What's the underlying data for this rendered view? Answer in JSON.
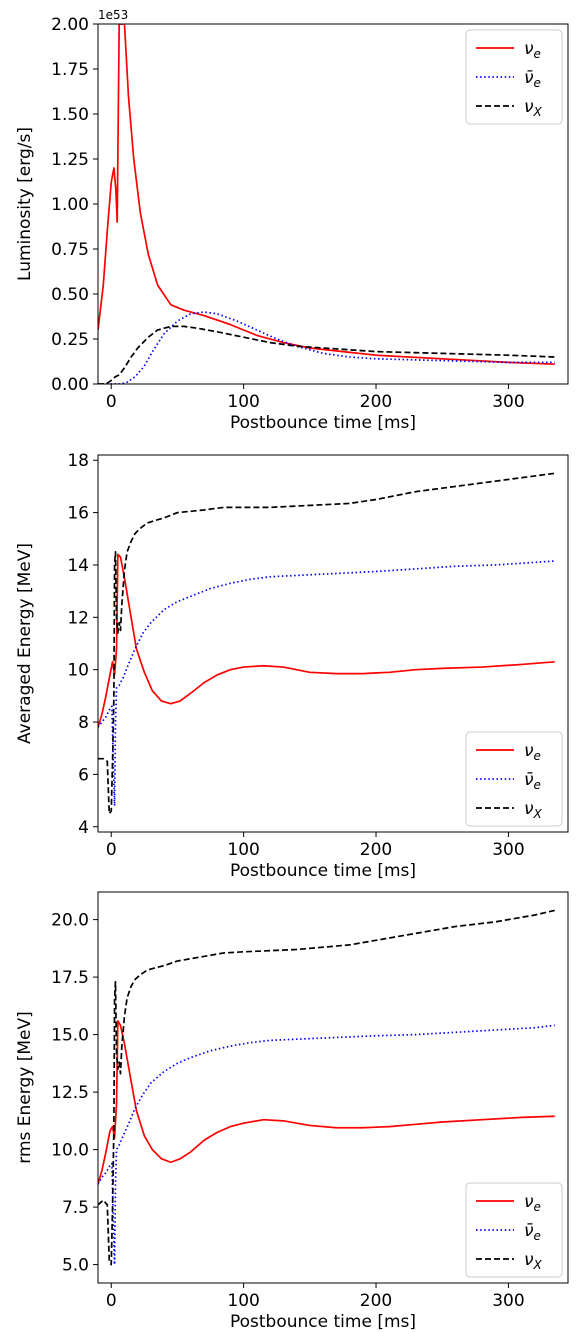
{
  "chart_data": [
    {
      "type": "line",
      "xlabel": "Postbounce time [ms]",
      "ylabel": "Luminosity [erg/s]",
      "offset_text": "1e53",
      "xlim": [
        -10,
        345
      ],
      "ylim": [
        0.0,
        2.0
      ],
      "xticks": [
        0,
        100,
        200,
        300
      ],
      "xtick_labels": [
        "0",
        "100",
        "200",
        "300"
      ],
      "yticks": [
        0.0,
        0.25,
        0.5,
        0.75,
        1.0,
        1.25,
        1.5,
        1.75,
        2.0
      ],
      "ytick_labels": [
        "0.00",
        "0.25",
        "0.50",
        "0.75",
        "1.00",
        "1.25",
        "1.50",
        "1.75",
        "2.00"
      ],
      "legend": "top-right",
      "grid": false,
      "series": [
        {
          "name": "ν_e",
          "color": "#ff0000",
          "style": "solid",
          "x": [
            -10,
            -6,
            -3,
            0,
            2,
            3.5,
            4.5,
            6,
            8,
            10,
            13,
            17,
            22,
            28,
            35,
            45,
            55,
            70,
            90,
            110,
            130,
            150,
            175,
            200,
            250,
            300,
            335
          ],
          "y": [
            0.3,
            0.55,
            0.85,
            1.12,
            1.2,
            1.08,
            0.9,
            2.0,
            2.0,
            2.0,
            1.6,
            1.25,
            0.95,
            0.72,
            0.55,
            0.44,
            0.41,
            0.38,
            0.33,
            0.27,
            0.23,
            0.2,
            0.18,
            0.16,
            0.14,
            0.12,
            0.11
          ]
        },
        {
          "name": "ν̄_e",
          "color": "#0000ff",
          "style": "dotted",
          "x": [
            -10,
            -4,
            0,
            3,
            7,
            12,
            18,
            25,
            32,
            40,
            50,
            60,
            70,
            80,
            95,
            110,
            125,
            140,
            160,
            180,
            200,
            250,
            300,
            335
          ],
          "y": [
            0.0,
            0.0,
            0.0,
            0.0,
            0.0,
            0.01,
            0.04,
            0.1,
            0.19,
            0.28,
            0.35,
            0.39,
            0.4,
            0.39,
            0.35,
            0.3,
            0.25,
            0.21,
            0.17,
            0.15,
            0.14,
            0.13,
            0.12,
            0.12
          ]
        },
        {
          "name": "ν_X",
          "color": "#000000",
          "style": "dashed",
          "x": [
            -10,
            -4,
            0,
            3,
            6,
            10,
            15,
            20,
            28,
            35,
            45,
            55,
            65,
            80,
            100,
            120,
            140,
            160,
            180,
            200,
            250,
            300,
            335
          ],
          "y": [
            0.0,
            0.0,
            0.02,
            0.04,
            0.05,
            0.09,
            0.15,
            0.2,
            0.26,
            0.3,
            0.32,
            0.32,
            0.31,
            0.29,
            0.26,
            0.23,
            0.21,
            0.2,
            0.19,
            0.18,
            0.17,
            0.16,
            0.15
          ]
        }
      ]
    },
    {
      "type": "line",
      "xlabel": "Postbounce time [ms]",
      "ylabel": "Averaged Energy [MeV]",
      "xlim": [
        -10,
        345
      ],
      "ylim": [
        3.8,
        18.2
      ],
      "xticks": [
        0,
        100,
        200,
        300
      ],
      "xtick_labels": [
        "0",
        "100",
        "200",
        "300"
      ],
      "yticks": [
        4,
        6,
        8,
        10,
        12,
        14,
        16,
        18
      ],
      "ytick_labels": [
        "4",
        "6",
        "8",
        "10",
        "12",
        "14",
        "16",
        "18"
      ],
      "legend": "lower-right",
      "grid": false,
      "series": [
        {
          "name": "ν_e",
          "color": "#ff0000",
          "style": "solid",
          "x": [
            -10,
            -7,
            -4,
            -1,
            1,
            2.5,
            4,
            5,
            7,
            10,
            14,
            19,
            25,
            31,
            38,
            45,
            52,
            60,
            70,
            80,
            90,
            100,
            115,
            130,
            150,
            170,
            190,
            210,
            230,
            250,
            280,
            310,
            335
          ],
          "y": [
            7.8,
            8.3,
            9.0,
            9.8,
            10.3,
            9.8,
            10.8,
            14.4,
            14.3,
            13.5,
            12.3,
            10.8,
            9.9,
            9.2,
            8.8,
            8.7,
            8.8,
            9.1,
            9.5,
            9.8,
            10.0,
            10.1,
            10.15,
            10.1,
            9.9,
            9.85,
            9.85,
            9.9,
            10.0,
            10.05,
            10.1,
            10.2,
            10.3
          ]
        },
        {
          "name": "ν̄_e",
          "color": "#0000ff",
          "style": "dotted",
          "x": [
            -10,
            -7,
            -4,
            -1,
            0.5,
            1.5,
            2.5,
            3.2,
            4,
            6,
            9,
            13,
            18,
            24,
            30,
            40,
            50,
            60,
            75,
            90,
            105,
            120,
            140,
            160,
            180,
            200,
            230,
            260,
            290,
            320,
            335
          ],
          "y": [
            7.8,
            8.0,
            8.2,
            8.5,
            8.6,
            6.5,
            4.8,
            8.0,
            9.3,
            9.4,
            9.7,
            10.2,
            10.8,
            11.4,
            11.8,
            12.3,
            12.6,
            12.8,
            13.1,
            13.3,
            13.45,
            13.55,
            13.6,
            13.65,
            13.7,
            13.75,
            13.85,
            13.95,
            14.0,
            14.1,
            14.15
          ]
        },
        {
          "name": "ν_X",
          "color": "#000000",
          "style": "dashed",
          "x": [
            -10,
            -6,
            -3,
            -1.5,
            0,
            1,
            2,
            2.5,
            3.2,
            4,
            5,
            6,
            7,
            8,
            10,
            12,
            15,
            18,
            22,
            27,
            33,
            40,
            50,
            60,
            70,
            85,
            100,
            120,
            140,
            160,
            180,
            200,
            230,
            260,
            290,
            320,
            335
          ],
          "y": [
            6.6,
            6.6,
            6.5,
            4.5,
            4.6,
            6.5,
            9.0,
            14.0,
            14.5,
            12.0,
            11.4,
            11.8,
            11.5,
            12.5,
            13.8,
            14.5,
            14.9,
            15.2,
            15.4,
            15.6,
            15.7,
            15.8,
            16.0,
            16.05,
            16.1,
            16.2,
            16.2,
            16.2,
            16.25,
            16.3,
            16.35,
            16.5,
            16.8,
            17.0,
            17.2,
            17.4,
            17.5
          ]
        }
      ]
    },
    {
      "type": "line",
      "xlabel": "Postbounce time [ms]",
      "ylabel": "rms Energy [MeV]",
      "xlim": [
        -10,
        345
      ],
      "ylim": [
        4.2,
        21.2
      ],
      "xticks": [
        0,
        100,
        200,
        300
      ],
      "xtick_labels": [
        "0",
        "100",
        "200",
        "300"
      ],
      "yticks": [
        5.0,
        7.5,
        10.0,
        12.5,
        15.0,
        17.5,
        20.0
      ],
      "ytick_labels": [
        "5.0",
        "7.5",
        "10.0",
        "12.5",
        "15.0",
        "17.5",
        "20.0"
      ],
      "legend": "lower-right",
      "grid": false,
      "series": [
        {
          "name": "ν_e",
          "color": "#ff0000",
          "style": "solid",
          "x": [
            -10,
            -7,
            -4,
            -1,
            1,
            2.5,
            4,
            5,
            7,
            10,
            14,
            19,
            25,
            31,
            38,
            45,
            52,
            60,
            70,
            80,
            90,
            100,
            115,
            130,
            150,
            170,
            190,
            210,
            230,
            250,
            280,
            310,
            335
          ],
          "y": [
            8.5,
            9.1,
            9.9,
            10.8,
            11.0,
            10.5,
            12.0,
            15.6,
            15.4,
            14.6,
            13.3,
            11.7,
            10.6,
            10.0,
            9.6,
            9.45,
            9.6,
            9.9,
            10.4,
            10.75,
            11.0,
            11.15,
            11.3,
            11.25,
            11.05,
            10.95,
            10.95,
            11.0,
            11.1,
            11.2,
            11.3,
            11.4,
            11.45
          ]
        },
        {
          "name": "ν̄_e",
          "color": "#0000ff",
          "style": "dotted",
          "x": [
            -10,
            -7,
            -4,
            -1,
            0.5,
            1.5,
            2.5,
            3.2,
            4,
            6,
            9,
            13,
            18,
            24,
            30,
            40,
            50,
            60,
            75,
            90,
            105,
            120,
            140,
            160,
            180,
            200,
            230,
            260,
            290,
            320,
            335
          ],
          "y": [
            8.5,
            8.8,
            9.0,
            9.3,
            9.4,
            7.0,
            5.0,
            8.5,
            10.0,
            10.2,
            10.6,
            11.1,
            11.8,
            12.4,
            12.9,
            13.4,
            13.75,
            14.0,
            14.3,
            14.5,
            14.65,
            14.75,
            14.8,
            14.85,
            14.9,
            14.95,
            15.0,
            15.1,
            15.2,
            15.3,
            15.4
          ]
        },
        {
          "name": "ν_X",
          "color": "#000000",
          "style": "dashed",
          "x": [
            -10,
            -6,
            -3,
            -1.5,
            0,
            1,
            2,
            2.5,
            3.2,
            4,
            5,
            6,
            7,
            8,
            10,
            12,
            15,
            18,
            22,
            27,
            33,
            40,
            50,
            60,
            70,
            85,
            100,
            120,
            140,
            160,
            180,
            200,
            230,
            260,
            290,
            320,
            335
          ],
          "y": [
            7.6,
            7.8,
            7.6,
            5.2,
            5.0,
            7.5,
            11.0,
            16.5,
            17.3,
            14.2,
            13.5,
            13.8,
            13.3,
            14.5,
            15.8,
            16.6,
            17.1,
            17.4,
            17.6,
            17.8,
            17.9,
            18.0,
            18.2,
            18.3,
            18.4,
            18.55,
            18.6,
            18.65,
            18.7,
            18.8,
            18.9,
            19.1,
            19.4,
            19.7,
            19.9,
            20.2,
            20.4
          ]
        }
      ]
    }
  ]
}
